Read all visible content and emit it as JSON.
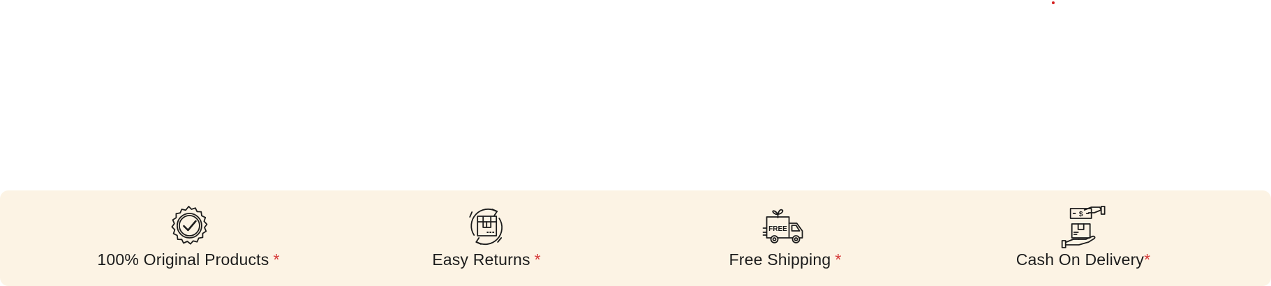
{
  "colors": {
    "background": "#ffffff",
    "features_bar": "#fcf3e4",
    "text": "#1c1c1c",
    "asterisk": "#d63a3a",
    "accent_dot": "#d41f1f"
  },
  "features": [
    {
      "label": "100% Original Products",
      "asterisk": "*",
      "icon": "verified-badge-icon"
    },
    {
      "label": "Easy Returns",
      "asterisk": "*",
      "icon": "return-box-icon"
    },
    {
      "label": "Free Shipping",
      "asterisk": "*",
      "icon": "free-delivery-truck-icon"
    },
    {
      "label": "Cash On Delivery",
      "asterisk": "*",
      "icon": "cash-on-delivery-icon"
    }
  ]
}
